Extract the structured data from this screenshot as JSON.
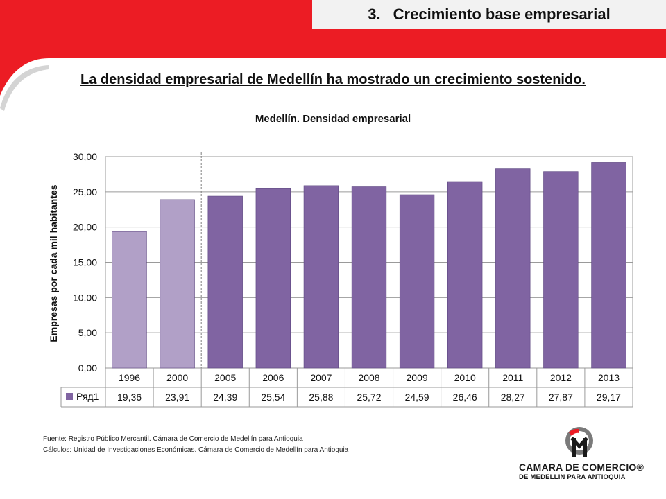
{
  "header": {
    "section_number": "3.",
    "section_title": "Crecimiento base empresarial",
    "headline": "La densidad empresarial de Medellín ha mostrado un crecimiento sostenido."
  },
  "colors": {
    "banner_red": "#ec1c24",
    "bar_light": "#b1a0c7",
    "bar_dark": "#8064a2"
  },
  "chart_data": {
    "type": "bar",
    "title": "Medellín. Densidad empresarial",
    "ylabel": "Empresas por cada mil habitantes",
    "xlabel": "",
    "categories": [
      "1996",
      "2000",
      "2005",
      "2006",
      "2007",
      "2008",
      "2009",
      "2010",
      "2011",
      "2012",
      "2013"
    ],
    "series": [
      {
        "name": "Ряд1",
        "values": [
          19.36,
          23.91,
          24.39,
          25.54,
          25.88,
          25.72,
          24.59,
          26.46,
          28.27,
          27.87,
          29.17
        ],
        "value_labels": [
          "19,36",
          "23,91",
          "24,39",
          "25,54",
          "25,88",
          "25,72",
          "24,59",
          "26,46",
          "28,27",
          "27,87",
          "29,17"
        ]
      }
    ],
    "ylim": [
      0,
      30
    ],
    "yticks": [
      0,
      5,
      10,
      15,
      20,
      25,
      30
    ],
    "ytick_labels": [
      "0,00",
      "5,00",
      "10,00",
      "15,00",
      "20,00",
      "25,00",
      "30,00"
    ],
    "grid": true,
    "data_table": true,
    "highlight_categories": [
      "1996",
      "2000"
    ]
  },
  "footnotes": {
    "source": "Fuente: Registro Público Mercantil. Cámara de Comercio de Medellín para Antioquia",
    "calc": "Cálculos: Unidad de Investigaciones Económicas. Cámara de Comercio de Medellín para Antioquia"
  },
  "logo": {
    "line1": "CAMARA DE COMERCIO®",
    "line2": "DE MEDELLIN PARA ANTIOQUIA",
    "icon": "camara-de-comercio-logo-icon"
  }
}
